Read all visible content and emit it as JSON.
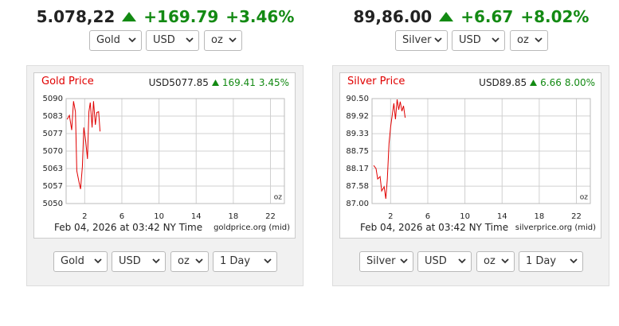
{
  "widgets": [
    {
      "price": "5.078,22",
      "change": "+169.79",
      "change_pct": "+3.46%",
      "selects_top": [
        "Gold",
        "USD",
        "oz"
      ],
      "quote": "USD5077.85",
      "quote_change": "169.41",
      "quote_change_pct": "3.45%",
      "timestamp": "Feb 04, 2026 at 03:42 NY Time",
      "source": "goldprice.org (mid)",
      "selects_bottom": [
        "Gold",
        "USD",
        "oz",
        "1 Day"
      ]
    },
    {
      "price": "89,86.00",
      "change": "+6.67",
      "change_pct": "+8.02%",
      "selects_top": [
        "Silver",
        "USD",
        "oz"
      ],
      "quote": "USD89.85",
      "quote_change": "6.66",
      "quote_change_pct": "8.00%",
      "timestamp": "Feb 04, 2026 at 03:42 NY Time",
      "source": "silverprice.org (mid)",
      "selects_bottom": [
        "Silver",
        "USD",
        "oz",
        "1 Day"
      ]
    }
  ],
  "chart_data": [
    {
      "type": "line",
      "title": "Gold Price",
      "unit": "oz",
      "color": "#e00000",
      "grid": true,
      "x": [
        0.1,
        0.35,
        0.6,
        0.8,
        1.0,
        1.15,
        1.4,
        1.55,
        1.75,
        1.9,
        2.1,
        2.3,
        2.45,
        2.6,
        2.8,
        2.95,
        3.15,
        3.3,
        3.5,
        3.65
      ],
      "values": [
        5082.1,
        5083.6,
        5078,
        5089,
        5085,
        5062.5,
        5058,
        5055.5,
        5064,
        5079,
        5074,
        5067,
        5085,
        5088.5,
        5079,
        5089,
        5080,
        5084.7,
        5085,
        5077.5
      ],
      "xlim": [
        0,
        23.5
      ],
      "xticks": [
        2,
        6,
        10,
        14,
        18,
        22
      ],
      "ylim": [
        5050,
        5090
      ],
      "yticks": [
        5050,
        {
          "value": 5056.67,
          "label": "5057"
        },
        {
          "value": 5063.33,
          "label": "5063"
        },
        5070,
        {
          "value": 5076.67,
          "label": "5077"
        },
        {
          "value": 5083.33,
          "label": "5083"
        },
        5090
      ]
    },
    {
      "type": "line",
      "title": "Silver Price",
      "unit": "oz",
      "color": "#e00000",
      "grid": true,
      "x": [
        0.17,
        0.43,
        0.61,
        0.87,
        1.04,
        1.3,
        1.48,
        1.65,
        1.83,
        2.0,
        2.17,
        2.35,
        2.52,
        2.7,
        2.87,
        3.04,
        3.22,
        3.39,
        3.57
      ],
      "values": [
        88.27,
        88.17,
        87.82,
        87.9,
        87.42,
        87.56,
        87.16,
        87.82,
        89.0,
        89.55,
        89.94,
        90.34,
        89.81,
        90.47,
        90.13,
        90.4,
        90.08,
        90.26,
        89.86
      ],
      "xlim": [
        0,
        23.5
      ],
      "xticks": [
        2,
        6,
        10,
        14,
        18,
        22
      ],
      "ylim": [
        87,
        90.5
      ],
      "yticks": [
        {
          "value": 87,
          "label": "87.00"
        },
        {
          "value": 87.58,
          "label": "87.58"
        },
        {
          "value": 88.17,
          "label": "88.17"
        },
        {
          "value": 88.75,
          "label": "88.75"
        },
        {
          "value": 89.33,
          "label": "89.33"
        },
        {
          "value": 89.92,
          "label": "89.92"
        },
        {
          "value": 90.5,
          "label": "90.50"
        }
      ]
    }
  ]
}
